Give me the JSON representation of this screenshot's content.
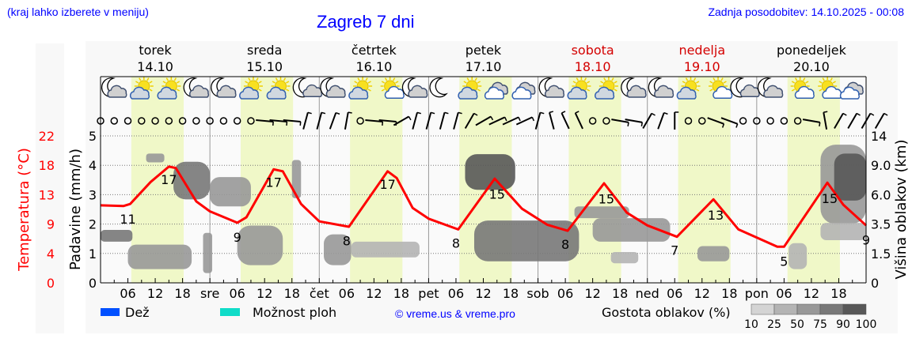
{
  "header": {
    "menu_hint": "(kraj lahko izberete v meniju)",
    "title": "Zagreb 7 dni",
    "updated": "Zadnja posodobitev: 14.10.2025 - 00:08"
  },
  "colors": {
    "temperature": "#ff0000",
    "weekend": "#d40000",
    "daylight": "#f0f8c8",
    "rain": "#0050ff",
    "showers": "#10dcc8",
    "link": "#0000ff",
    "cloud_density": [
      "#d4d4d4",
      "#b4b4b4",
      "#989898",
      "#787878",
      "#585858"
    ]
  },
  "legend": {
    "rain_label": "Dež",
    "showers_label": "Možnost ploh",
    "copyright": "© vreme.us & vreme.pro",
    "cloud_density_label": "Gostota oblakov (%)",
    "cloud_density_ticks": [
      "10",
      "25",
      "50",
      "75",
      "90",
      "100"
    ]
  },
  "chart_data": {
    "type": "line",
    "days": [
      {
        "name": "torek",
        "date": "14.10",
        "weekend": false,
        "abbr": ""
      },
      {
        "name": "sreda",
        "date": "15.10",
        "weekend": false,
        "abbr": "sre"
      },
      {
        "name": "četrtek",
        "date": "16.10",
        "weekend": false,
        "abbr": "čet"
      },
      {
        "name": "petek",
        "date": "17.10",
        "weekend": false,
        "abbr": "pet"
      },
      {
        "name": "sobota",
        "date": "18.10",
        "weekend": true,
        "abbr": "sob"
      },
      {
        "name": "nedelja",
        "date": "19.10",
        "weekend": true,
        "abbr": "ned"
      },
      {
        "name": "ponedeljek",
        "date": "20.10",
        "weekend": false,
        "abbr": "pon"
      }
    ],
    "x_hour_ticks": [
      "06",
      "12",
      "18"
    ],
    "daylight_hours": [
      6.75,
      18.25
    ],
    "left_axis": {
      "label": "Padavine (mm/h)",
      "ticks": [
        "0",
        "1",
        "2",
        "3",
        "4",
        "5"
      ],
      "ylim": [
        0,
        5
      ]
    },
    "temp_axis": {
      "label": "Temperatura (°C)",
      "ticks": [
        "0",
        "4",
        "9",
        "13",
        "18",
        "22"
      ],
      "ylim": [
        0,
        22
      ]
    },
    "right_axis": {
      "label": "Višina oblakov (km)",
      "ticks": [
        "0",
        "1.5",
        "3.5",
        "6.0",
        "9.0",
        "14"
      ],
      "values": [
        0,
        1.5,
        3.5,
        6,
        9,
        14
      ]
    },
    "grid": true,
    "temperature": {
      "hours": [
        0,
        5,
        6.5,
        11,
        15,
        16.5,
        21,
        24,
        30,
        32,
        38,
        40,
        44,
        48,
        54.5,
        63,
        65,
        68.5,
        72,
        78.5,
        86.5,
        92.5,
        98,
        102.5,
        110.5,
        115.5,
        120,
        126.5,
        134.5,
        140,
        148.5,
        150,
        159.5,
        163,
        168
      ],
      "values": [
        11.6,
        11.5,
        11.8,
        15.1,
        17.4,
        17.2,
        12.2,
        10.7,
        9.0,
        9.8,
        17.0,
        16.7,
        11.8,
        9.2,
        8.4,
        16.7,
        15.7,
        11.2,
        9.6,
        8.0,
        15.6,
        11.1,
        8.7,
        7.8,
        14.9,
        10.5,
        8.6,
        6.9,
        12.5,
        8.0,
        5.4,
        5.4,
        15.0,
        11.7,
        8.6
      ]
    },
    "temperature_labels": [
      {
        "value": "11",
        "hour": 6,
        "kind": "min"
      },
      {
        "value": "17",
        "hour": 15,
        "kind": "max"
      },
      {
        "value": "9",
        "hour": 30,
        "kind": "min"
      },
      {
        "value": "17",
        "hour": 38,
        "kind": "max"
      },
      {
        "value": "8",
        "hour": 54,
        "kind": "min"
      },
      {
        "value": "17",
        "hour": 63,
        "kind": "max"
      },
      {
        "value": "8",
        "hour": 78,
        "kind": "min"
      },
      {
        "value": "15",
        "hour": 87,
        "kind": "max"
      },
      {
        "value": "8",
        "hour": 102,
        "kind": "min"
      },
      {
        "value": "15",
        "hour": 111,
        "kind": "max"
      },
      {
        "value": "7",
        "hour": 126,
        "kind": "min"
      },
      {
        "value": "13",
        "hour": 135,
        "kind": "max"
      },
      {
        "value": "5",
        "hour": 150,
        "kind": "min"
      },
      {
        "value": "15",
        "hour": 160,
        "kind": "max"
      },
      {
        "value": "9",
        "hour": 168,
        "kind": "min"
      }
    ],
    "clouds": [
      {
        "h": [
          0,
          7
        ],
        "km": [
          2.3,
          3.1
        ],
        "density": 75
      },
      {
        "h": [
          6,
          20
        ],
        "km": [
          0.7,
          2.1
        ],
        "density": 50
      },
      {
        "h": [
          10,
          14
        ],
        "km": [
          9.5,
          11
        ],
        "density": 50
      },
      {
        "h": [
          16,
          24
        ],
        "km": [
          5.6,
          9.6
        ],
        "density": 75
      },
      {
        "h": [
          24,
          33
        ],
        "km": [
          5,
          7.8
        ],
        "density": 50
      },
      {
        "h": [
          22.5,
          24.5
        ],
        "km": [
          0.5,
          2.9
        ],
        "density": 50
      },
      {
        "h": [
          30,
          40
        ],
        "km": [
          0.9,
          3.4
        ],
        "density": 50
      },
      {
        "h": [
          42,
          44
        ],
        "km": [
          5.7,
          9.9
        ],
        "density": 50
      },
      {
        "h": [
          49,
          55
        ],
        "km": [
          0.9,
          2.8
        ],
        "density": 50
      },
      {
        "h": [
          55,
          70
        ],
        "km": [
          1.3,
          2.3
        ],
        "density": 25
      },
      {
        "h": [
          80,
          91
        ],
        "km": [
          6.5,
          10.9
        ],
        "density": 90
      },
      {
        "h": [
          82,
          105
        ],
        "km": [
          1.1,
          3.8
        ],
        "density": 75
      },
      {
        "h": [
          104,
          116
        ],
        "km": [
          4,
          5
        ],
        "density": 50
      },
      {
        "h": [
          108,
          125
        ],
        "km": [
          2.3,
          4
        ],
        "density": 50
      },
      {
        "h": [
          112,
          118
        ],
        "km": [
          1,
          1.6
        ],
        "density": 25
      },
      {
        "h": [
          131,
          138
        ],
        "km": [
          1.1,
          2
        ],
        "density": 50
      },
      {
        "h": [
          151,
          155
        ],
        "km": [
          0.7,
          2.2
        ],
        "density": 25
      },
      {
        "h": [
          158,
          168
        ],
        "km": [
          3.5,
          12.5
        ],
        "density": 50
      },
      {
        "h": [
          161,
          168
        ],
        "km": [
          5.5,
          11
        ],
        "density": 90
      },
      {
        "h": [
          158,
          168
        ],
        "km": [
          2.4,
          3.6
        ],
        "density": 25
      }
    ],
    "weather_icons": [
      "moon-cloud",
      "sun-cloud",
      "sun-cloud",
      "moon-cloud",
      "moon-cloud",
      "sun-cloud",
      "sun-cloud",
      "moon-small-cloud",
      "moon-cloud",
      "sun-cloud",
      "sun-small-cloud",
      "moon-cloud",
      "moon",
      "sun-cloud",
      "cloudy",
      "cloudy",
      "moon-cloud",
      "sun-cloud",
      "sun-cloud",
      "moon-cloud",
      "moon-cloud",
      "sun-cloud",
      "sun-small-cloud",
      "moon-small-cloud",
      "moon-cloud",
      "sun-small-cloud",
      "sun-small-cloud",
      "cloudy"
    ],
    "wind_every_hours": 3,
    "wind_directions": [
      "calm",
      "calm",
      "calm",
      "calm",
      "calm",
      "calm",
      "calm",
      "calm",
      "calm",
      "calm",
      "calm",
      "calm",
      95,
      95,
      95,
      15,
      15,
      20,
      10,
      "calm",
      95,
      95,
      60,
      15,
      15,
      15,
      15,
      30,
      60,
      65,
      65,
      65,
      15,
      -15,
      -25,
      -25,
      "calm",
      "calm",
      100,
      100,
      30,
      20,
      0,
      "calm",
      "calm",
      110,
      110,
      "calm",
      "calm",
      "calm",
      "calm",
      "calm",
      100,
      -10,
      30,
      30,
      30,
      30
    ]
  }
}
